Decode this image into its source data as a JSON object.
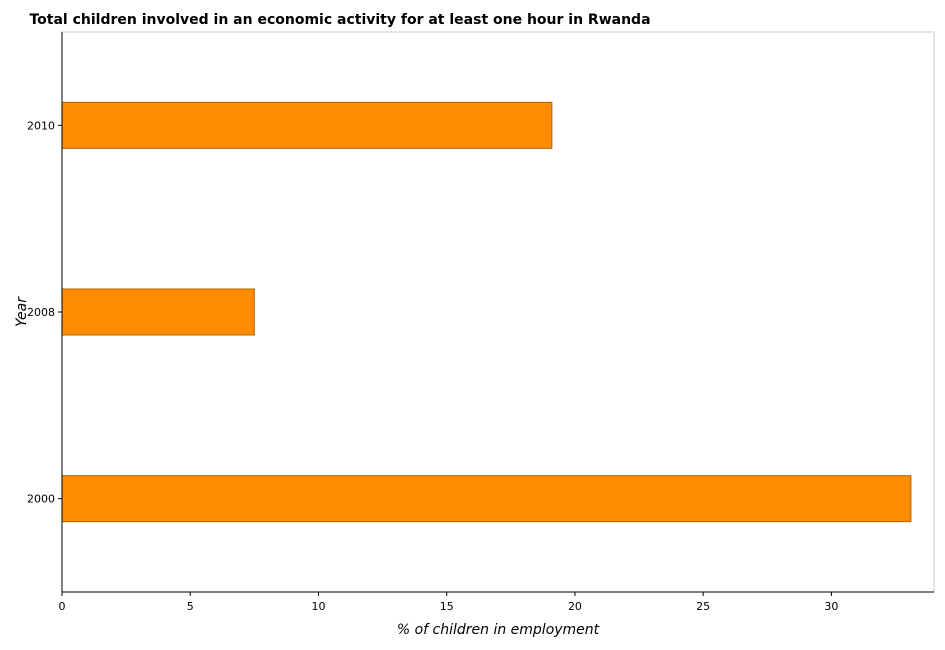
{
  "chart_data": {
    "type": "bar",
    "orientation": "horizontal",
    "title": "Total children involved in an economic activity for at least one hour in Rwanda",
    "xlabel": "% of children in employment",
    "ylabel": "Year",
    "categories": [
      "2000",
      "2008",
      "2010"
    ],
    "values": [
      33.1,
      7.5,
      19.1
    ],
    "xlim": [
      0,
      34
    ],
    "xticks": [
      0,
      5,
      10,
      15,
      20,
      25,
      30
    ],
    "grid": false,
    "legend": "none",
    "bar_color": "#ff8c00",
    "bar_edge_color": "#b36200"
  }
}
